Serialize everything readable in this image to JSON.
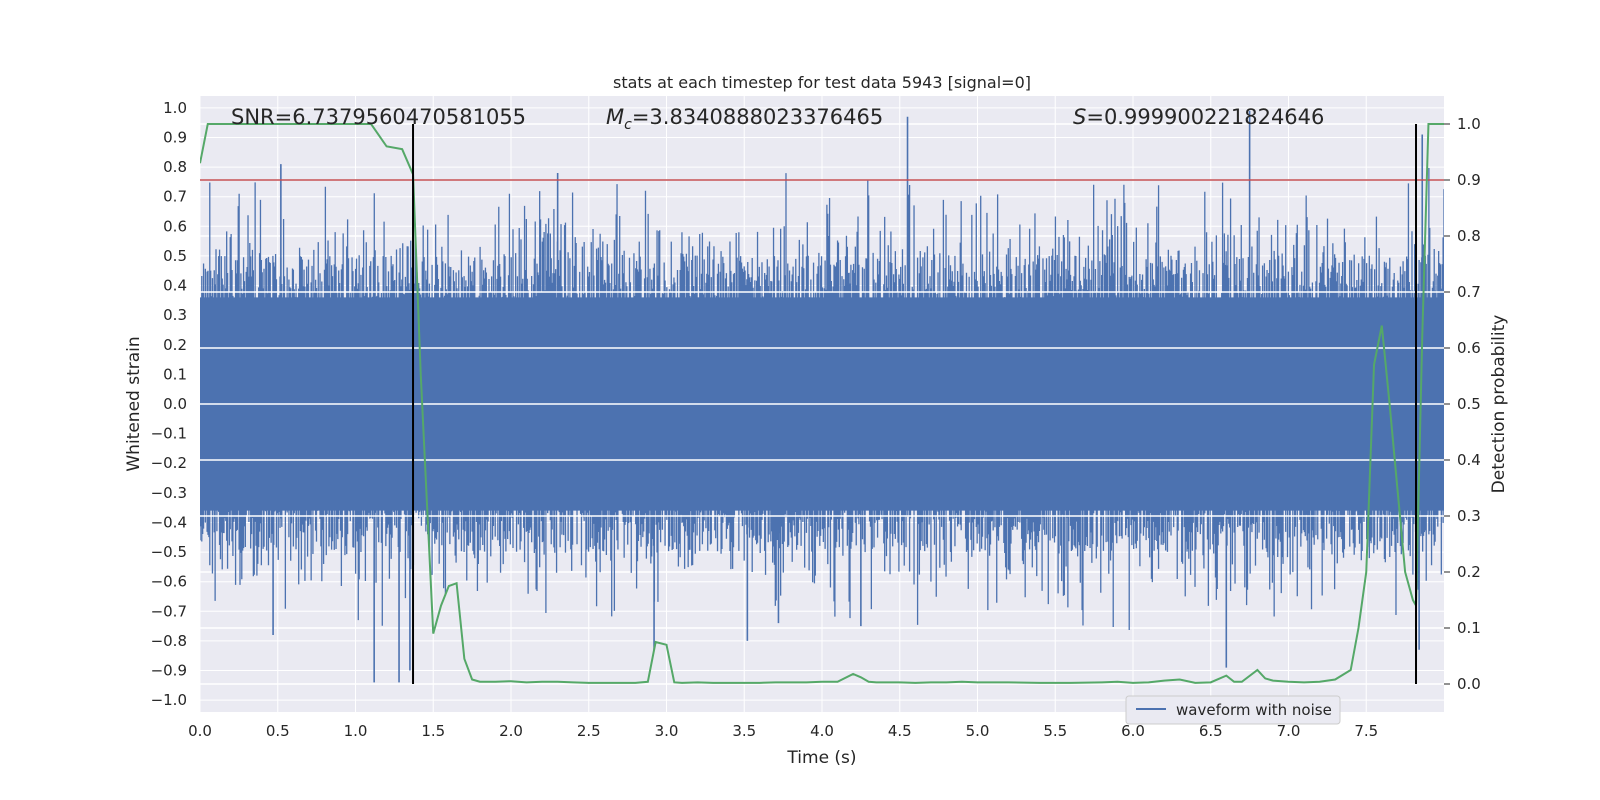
{
  "chart_data": {
    "type": "line",
    "title": "stats at each timestep for test data 5943 [signal=0]",
    "xlabel": "Time (s)",
    "ylabel_left": "Whitened strain",
    "ylabel_right": "Detection probability",
    "xlim": [
      0.0,
      8.0
    ],
    "ylim_left": [
      -1.04,
      1.04
    ],
    "ylim_right": [
      -0.05,
      1.05
    ],
    "x_ticks": [
      0.0,
      0.5,
      1.0,
      1.5,
      2.0,
      2.5,
      3.0,
      3.5,
      4.0,
      4.5,
      5.0,
      5.5,
      6.0,
      6.5,
      7.0,
      7.5
    ],
    "x_tick_labels": [
      "0.0",
      "0.5",
      "1.0",
      "1.5",
      "2.0",
      "2.5",
      "3.0",
      "3.5",
      "4.0",
      "4.5",
      "5.0",
      "5.5",
      "6.0",
      "6.5",
      "7.0",
      "7.5"
    ],
    "y_left_ticks": [
      1.0,
      0.9,
      0.8,
      0.7,
      0.6,
      0.5,
      0.4,
      0.3,
      0.2,
      0.1,
      0.0,
      -0.1,
      -0.2,
      -0.3,
      -0.4,
      -0.5,
      -0.6,
      -0.7,
      -0.8,
      -0.9,
      -1.0
    ],
    "y_left_tick_labels": [
      "1.0",
      "0.9",
      "0.8",
      "0.7",
      "0.6",
      "0.5",
      "0.4",
      "0.3",
      "0.2",
      "0.1",
      "0.0",
      "−0.1",
      "−0.2",
      "−0.3",
      "−0.4",
      "−0.5",
      "−0.6",
      "−0.7",
      "−0.8",
      "−0.9",
      "−1.0"
    ],
    "y_right_ticks": [
      1.0,
      0.9,
      0.8,
      0.7,
      0.6,
      0.5,
      0.4,
      0.3,
      0.2,
      0.1,
      0.0
    ],
    "y_right_tick_labels": [
      "1.0",
      "0.9",
      "0.8",
      "0.7",
      "0.6",
      "0.5",
      "0.4",
      "0.3",
      "0.2",
      "0.1",
      "0.0"
    ],
    "grid": true,
    "legend_placement": "lower-right",
    "annotations": {
      "snr": "SNR=6.7379560470581055",
      "mc_symbol": "M",
      "mc_sub": "c",
      "mc_value": "=3.8340888023376465",
      "s_symbol": "S",
      "s_value": "=0.999900221824646"
    },
    "series": [
      {
        "name": "waveform with noise",
        "axis": "left",
        "color": "#4c72b0",
        "description_level": "noise band roughly between -0.5 and 0.5 with spikes",
        "spikes": [
          [
            0.52,
            0.81
          ],
          [
            0.47,
            -0.78
          ],
          [
            1.12,
            -0.94
          ],
          [
            1.28,
            -0.94
          ],
          [
            1.35,
            -0.9
          ],
          [
            2.3,
            0.78
          ],
          [
            2.92,
            -0.83
          ],
          [
            3.52,
            -0.8
          ],
          [
            4.55,
            0.97
          ],
          [
            6.75,
            0.99
          ],
          [
            6.6,
            -0.89
          ],
          [
            7.86,
            0.91
          ],
          [
            7.84,
            -0.83
          ],
          [
            3.72,
            -0.74
          ],
          [
            4.25,
            -0.75
          ]
        ]
      },
      {
        "name": "",
        "axis": "right",
        "color": "#55a868",
        "x": [
          0.0,
          0.05,
          0.1,
          0.2,
          0.3,
          0.4,
          0.5,
          0.6,
          0.7,
          0.8,
          0.9,
          1.0,
          1.1,
          1.2,
          1.3,
          1.37,
          1.42,
          1.5,
          1.55,
          1.6,
          1.65,
          1.7,
          1.75,
          1.8,
          1.9,
          2.0,
          2.1,
          2.2,
          2.3,
          2.4,
          2.5,
          2.6,
          2.7,
          2.8,
          2.88,
          2.93,
          3.0,
          3.05,
          3.1,
          3.2,
          3.3,
          3.4,
          3.5,
          3.6,
          3.7,
          3.8,
          3.9,
          4.0,
          4.1,
          4.2,
          4.25,
          4.3,
          4.35,
          4.4,
          4.5,
          4.6,
          4.7,
          4.8,
          4.9,
          5.0,
          5.2,
          5.4,
          5.6,
          5.8,
          5.9,
          6.0,
          6.1,
          6.2,
          6.3,
          6.4,
          6.5,
          6.6,
          6.65,
          6.7,
          6.8,
          6.85,
          6.9,
          7.0,
          7.1,
          7.2,
          7.3,
          7.4,
          7.45,
          7.5,
          7.55,
          7.6,
          7.65,
          7.7,
          7.75,
          7.8,
          7.82,
          7.86,
          7.9,
          7.95,
          8.0
        ],
        "values": [
          0.93,
          1.0,
          1.0,
          1.0,
          1.0,
          1.0,
          1.0,
          1.0,
          1.0,
          1.0,
          1.0,
          1.0,
          1.0,
          0.96,
          0.955,
          0.91,
          0.55,
          0.09,
          0.14,
          0.175,
          0.18,
          0.045,
          0.008,
          0.004,
          0.004,
          0.005,
          0.003,
          0.004,
          0.004,
          0.003,
          0.002,
          0.002,
          0.002,
          0.002,
          0.004,
          0.075,
          0.07,
          0.003,
          0.002,
          0.003,
          0.002,
          0.002,
          0.002,
          0.002,
          0.003,
          0.003,
          0.003,
          0.004,
          0.004,
          0.018,
          0.012,
          0.004,
          0.003,
          0.003,
          0.003,
          0.002,
          0.003,
          0.003,
          0.004,
          0.003,
          0.003,
          0.002,
          0.002,
          0.003,
          0.004,
          0.002,
          0.003,
          0.006,
          0.008,
          0.002,
          0.003,
          0.015,
          0.004,
          0.004,
          0.025,
          0.01,
          0.006,
          0.004,
          0.003,
          0.004,
          0.008,
          0.025,
          0.1,
          0.2,
          0.57,
          0.64,
          0.5,
          0.35,
          0.2,
          0.15,
          0.14,
          0.62,
          1.0,
          1.0,
          1.0
        ]
      }
    ],
    "threshold_line": {
      "value": 0.9,
      "axis": "right",
      "color": "#c44e52"
    },
    "vertical_markers": [
      1.37,
      7.82
    ],
    "marker_color": "#000000"
  }
}
